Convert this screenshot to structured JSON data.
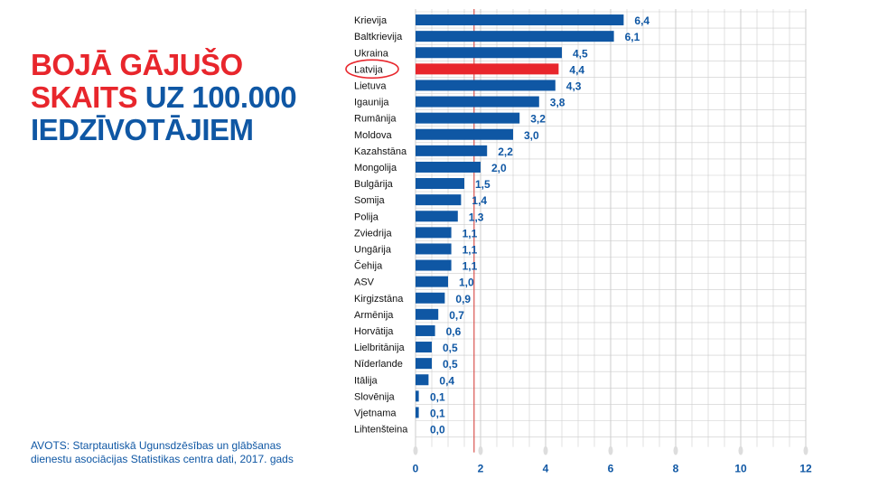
{
  "title": {
    "line1_red": "BOJĀ GĀJUŠO",
    "line2_red": "SKAITS",
    "line2_blue": "UZ 100.000",
    "line3_blue": "IEDZĪVOTĀJIEM"
  },
  "source": "AVOTS: Starptautiskā Ugunsdzēsības un glābšanas dienestu asociācijas Statistikas centra dati, 2017. gads",
  "colors": {
    "bar": "#0f57a4",
    "highlight": "#e8262c",
    "reference_line": "#d9534f",
    "grid": "#cccccc"
  },
  "chart_data": {
    "type": "bar",
    "orientation": "horizontal",
    "categories": [
      "Krievija",
      "Baltkrievija",
      "Ukraina",
      "Latvija",
      "Lietuva",
      "Igaunija",
      "Rumānija",
      "Moldova",
      "Kazahstāna",
      "Mongolija",
      "Bulgārija",
      "Somija",
      "Polija",
      "Zviedrija",
      "Ungārija",
      "Čehija",
      "ASV",
      "Kirgizstāna",
      "Armēnija",
      "Horvātija",
      "Lielbritānija",
      "Nīderlande",
      "Itālija",
      "Slovēnija",
      "Vjetnama",
      "Lihtenšteina"
    ],
    "values": [
      6.4,
      6.1,
      4.5,
      4.4,
      4.3,
      3.8,
      3.2,
      3.0,
      2.2,
      2.0,
      1.5,
      1.4,
      1.3,
      1.1,
      1.1,
      1.1,
      1.0,
      0.9,
      0.7,
      0.6,
      0.5,
      0.5,
      0.4,
      0.1,
      0.1,
      0.0
    ],
    "value_labels": [
      "6,4",
      "6,1",
      "4,5",
      "4,4",
      "4,3",
      "3,8",
      "3,2",
      "3,0",
      "2,2",
      "2,0",
      "1,5",
      "1,4",
      "1,3",
      "1,1",
      "1,1",
      "1,1",
      "1,0",
      "0,9",
      "0,7",
      "0,6",
      "0,5",
      "0,5",
      "0,4",
      "0,1",
      "0,1",
      "0,0"
    ],
    "highlight_category": "Latvija",
    "reference_value": 1.8,
    "xlim": [
      0,
      12
    ],
    "xticks": [
      0,
      2,
      4,
      6,
      8,
      10,
      12
    ],
    "grid": true
  }
}
